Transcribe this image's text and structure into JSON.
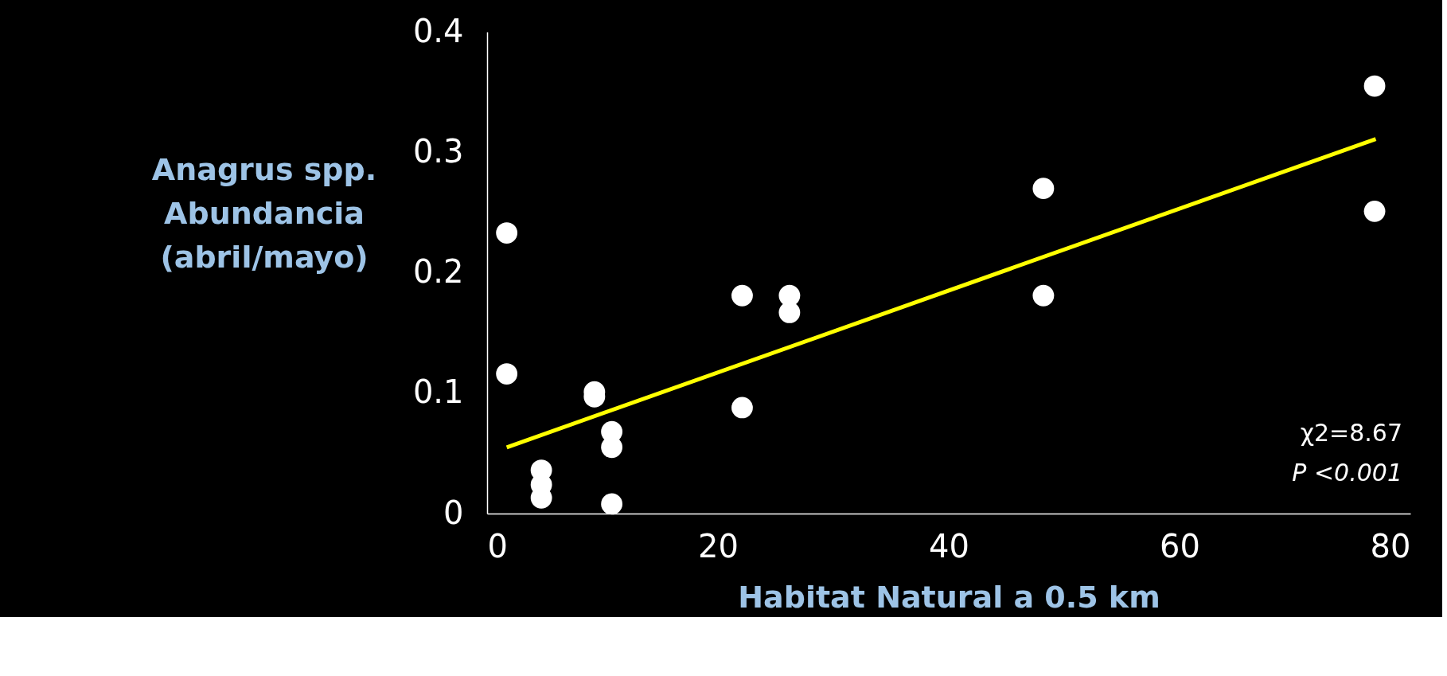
{
  "chart_data": {
    "type": "scatter",
    "xlabel": "Habitat Natural a 0.5 km",
    "ylabel": "Anagrus spp.\nAbundancia\n(abril/mayo)",
    "xlim": [
      0,
      80
    ],
    "xticks": [
      0,
      20,
      40,
      60,
      80
    ],
    "ylim": [
      0,
      0.4
    ],
    "yticks": [
      0,
      0.1,
      0.2,
      0.3,
      0.4
    ],
    "grid": false,
    "marker": "circle",
    "series": [
      {
        "color": "#ffffff",
        "x": [
          1.7,
          1.7,
          4.7,
          4.7,
          4.7,
          9.3,
          9.3,
          10.8,
          10.8,
          10.8,
          22.1,
          22.1,
          26.2,
          26.2,
          48.2,
          48.2,
          76.9,
          76.9
        ],
        "values": [
          0.233,
          0.116,
          0.036,
          0.024,
          0.013,
          0.101,
          0.097,
          0.068,
          0.055,
          0.008,
          0.181,
          0.088,
          0.181,
          0.167,
          0.27,
          0.181,
          0.355,
          0.251
        ]
      },
      {
        "type": "line",
        "color": "#ffff00",
        "x": [
          1.7,
          77.0
        ],
        "values": [
          0.055,
          0.311
        ],
        "marker": "none"
      }
    ],
    "annotations": [
      "χ2=8.67",
      "P <0.001"
    ]
  }
}
